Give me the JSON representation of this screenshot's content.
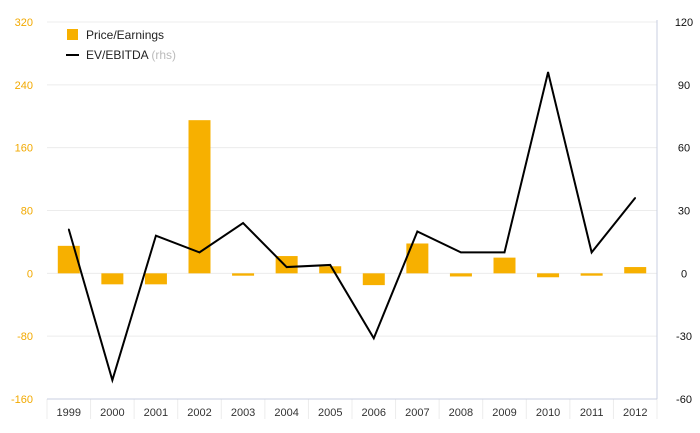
{
  "chart_data": {
    "type": "bar",
    "categories": [
      "1999",
      "2000",
      "2001",
      "2002",
      "2003",
      "2004",
      "2005",
      "2006",
      "2007",
      "2008",
      "2009",
      "2010",
      "2011",
      "2012"
    ],
    "series": [
      {
        "name": "Price/Earnings",
        "type": "bar",
        "axis": "left",
        "color": "#f7b000",
        "values": [
          35,
          -14,
          -14,
          195,
          -3,
          22,
          9,
          -15,
          38,
          -4,
          20,
          -5,
          -3,
          8
        ]
      },
      {
        "name": "EV/EBITDA",
        "name_suffix": "(rhs)",
        "type": "line",
        "axis": "right",
        "color": "#000000",
        "values": [
          21,
          -51,
          18,
          10,
          24,
          3,
          4,
          -31,
          20,
          10,
          10,
          96,
          10,
          36
        ]
      }
    ],
    "y_left": {
      "ylim": [
        -160,
        320
      ],
      "ticks": [
        "-160",
        "-80",
        "0",
        "80",
        "160",
        "240",
        "320"
      ],
      "color": "#f2a900"
    },
    "y_right": {
      "ylim": [
        -60,
        120
      ],
      "ticks": [
        "-60",
        "-30",
        "0",
        "30",
        "60",
        "90",
        "120"
      ],
      "color": "#111111"
    },
    "grid": true,
    "legend_position": "top-left"
  }
}
